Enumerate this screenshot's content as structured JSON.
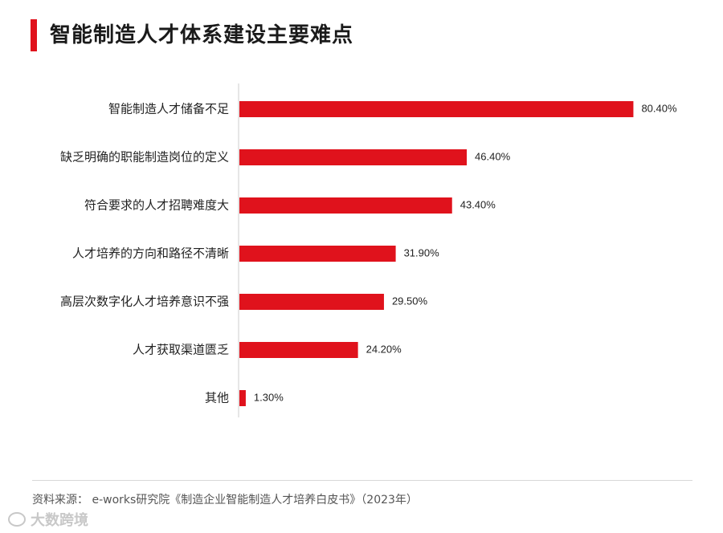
{
  "header": {
    "title": "智能制造人才体系建设主要难点"
  },
  "colors": {
    "accent": "#e0121c",
    "axis": "#cccccc"
  },
  "chart_data": {
    "type": "bar",
    "orientation": "horizontal",
    "title": "智能制造人才体系建设主要难点",
    "categories": [
      "智能制造人才储备不足",
      "缺乏明确的职能制造岗位的定义",
      "符合要求的人才招聘难度大",
      "人才培养的方向和路径不清晰",
      "高层次数字化人才培养意识不强",
      "人才获取渠道匮乏",
      "其他"
    ],
    "values": [
      80.4,
      46.4,
      43.4,
      31.9,
      29.5,
      24.2,
      1.3
    ],
    "value_labels": [
      "80.40%",
      "46.40%",
      "43.40%",
      "31.90%",
      "29.50%",
      "24.20%",
      "1.30%"
    ],
    "xlim": [
      0,
      100
    ],
    "grid": false
  },
  "footer": {
    "source": "资料来源： e-works研究院《制造企业智能制造人才培养白皮书》（2023年）",
    "watermark": "大数跨境"
  }
}
